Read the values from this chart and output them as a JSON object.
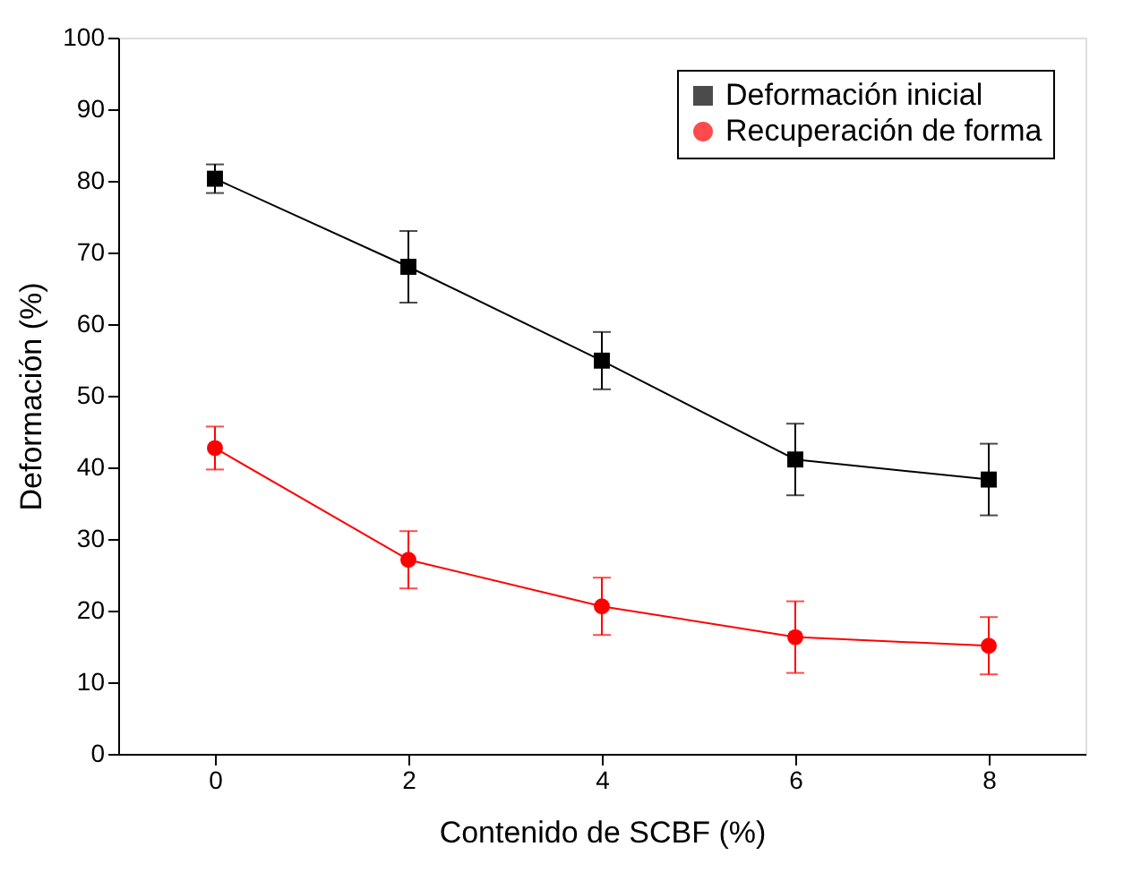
{
  "chart_data": {
    "type": "line",
    "xlabel": "Contenido de SCBF (%)",
    "ylabel": "Deformación (%)",
    "x": [
      0,
      2,
      4,
      6,
      8
    ],
    "series": [
      {
        "name": "Deformación inicial",
        "color": "#000000",
        "marker": "square",
        "values": [
          80.3,
          68,
          54.9,
          41.1,
          38.3
        ],
        "errors": [
          2,
          5,
          4,
          5,
          5
        ]
      },
      {
        "name": "Recuperación de forma",
        "color": "#ff0000",
        "marker": "circle",
        "values": [
          42.7,
          27.1,
          20.6,
          16.3,
          15.1
        ],
        "errors": [
          3,
          4,
          4,
          5,
          4
        ]
      }
    ],
    "xlim": [
      -1,
      9
    ],
    "xticks": [
      0,
      2,
      4,
      6,
      8
    ],
    "ylim": [
      0,
      100
    ],
    "yticks": [
      0,
      10,
      20,
      30,
      40,
      50,
      60,
      70,
      80,
      90,
      100
    ],
    "grid": false,
    "legend": "top right",
    "line_style": "solid"
  }
}
